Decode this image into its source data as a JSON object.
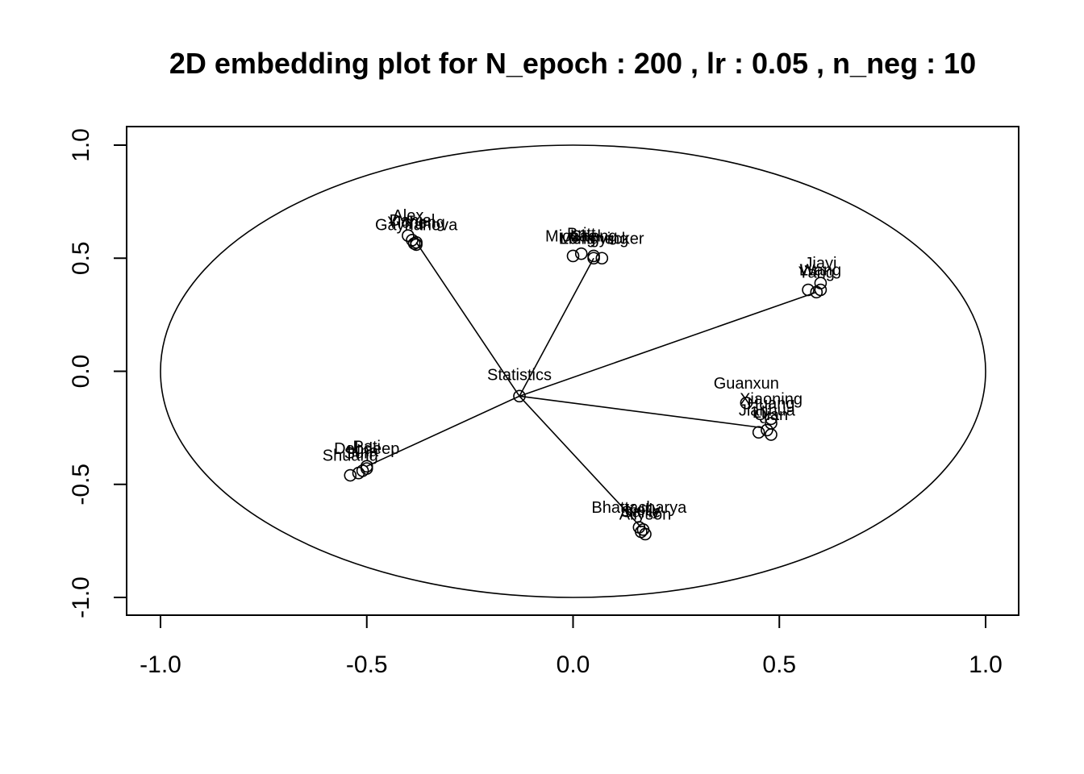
{
  "chart_data": {
    "type": "scatter",
    "title": "2D embedding plot for N_epoch : 200 , lr : 0.05 , n_neg : 10",
    "xlabel": "",
    "ylabel": "",
    "xlim": [
      -1.08,
      1.08
    ],
    "ylim": [
      -1.08,
      1.08
    ],
    "x_ticks": [
      -1.0,
      -0.5,
      0.0,
      0.5,
      1.0
    ],
    "x_tick_labels": [
      "-1.0",
      "-0.5",
      "0.0",
      "0.5",
      "1.0"
    ],
    "y_ticks": [
      -1.0,
      -0.5,
      0.0,
      0.5,
      1.0
    ],
    "y_tick_labels": [
      "-1.0",
      "-0.5",
      "0.0",
      "0.5",
      "1.0"
    ],
    "grid": false,
    "legend": "none",
    "unit_circle": true,
    "center": {
      "label": "Statistics",
      "x": -0.13,
      "y": -0.11
    },
    "clusters": [
      {
        "anchor": {
          "x": -0.38,
          "y": 0.57
        },
        "points": [
          {
            "label": "Alex",
            "x": -0.4,
            "y": 0.6
          },
          {
            "label": "Daniel",
            "x": -0.39,
            "y": 0.58
          },
          {
            "label": "Yicheng",
            "x": -0.38,
            "y": 0.57
          },
          {
            "label": "Gaynanova",
            "x": -0.38,
            "y": 0.56
          },
          {
            "label": "Yu",
            "x": -0.385,
            "y": 0.565
          }
        ]
      },
      {
        "anchor": {
          "x": 0.05,
          "y": 0.5
        },
        "points": [
          {
            "label": "Britt",
            "x": 0.02,
            "y": 0.52
          },
          {
            "label": "Michael",
            "x": 0.0,
            "y": 0.51
          },
          {
            "label": "Mengying",
            "x": 0.05,
            "y": 0.5
          },
          {
            "label": "Longnecker",
            "x": 0.07,
            "y": 0.5
          },
          {
            "label": "Cheng",
            "x": 0.05,
            "y": 0.51
          }
        ]
      },
      {
        "anchor": {
          "x": 0.59,
          "y": 0.35
        },
        "points": [
          {
            "label": "Jiayi",
            "x": 0.6,
            "y": 0.39
          },
          {
            "label": "Lu",
            "x": 0.57,
            "y": 0.36
          },
          {
            "label": "Wang",
            "x": 0.6,
            "y": 0.36
          },
          {
            "label": "Yang",
            "x": 0.59,
            "y": 0.35
          }
        ]
      },
      {
        "anchor": {
          "x": 0.46,
          "y": -0.25
        },
        "points": [
          {
            "label": "Guanxun",
            "x": 0.42,
            "y": -0.14
          },
          {
            "label": "Xiaoning",
            "x": 0.48,
            "y": -0.21
          },
          {
            "label": "Jianhua",
            "x": 0.47,
            "y": -0.26
          },
          {
            "label": "Huang",
            "x": 0.48,
            "y": -0.23
          },
          {
            "label": "Li",
            "x": 0.45,
            "y": -0.27
          },
          {
            "label": "Qian",
            "x": 0.48,
            "y": -0.28
          }
        ]
      },
      {
        "anchor": {
          "x": -0.5,
          "y": -0.42
        },
        "points": [
          {
            "label": "Pati",
            "x": -0.5,
            "y": -0.42
          },
          {
            "label": "Irina",
            "x": -0.51,
            "y": -0.44
          },
          {
            "label": "Shuang",
            "x": -0.54,
            "y": -0.46
          },
          {
            "label": "Sun",
            "x": -0.52,
            "y": -0.45
          },
          {
            "label": "Debdeep",
            "x": -0.5,
            "y": -0.43
          }
        ]
      },
      {
        "anchor": {
          "x": 0.165,
          "y": -0.69
        },
        "points": [
          {
            "label": "Bhattacharya",
            "x": 0.16,
            "y": -0.69
          },
          {
            "label": "Kelly",
            "x": 0.17,
            "y": -0.7
          },
          {
            "label": "Allyson",
            "x": 0.175,
            "y": -0.72
          },
          {
            "label": "Sallie",
            "x": 0.165,
            "y": -0.71
          }
        ]
      }
    ]
  }
}
